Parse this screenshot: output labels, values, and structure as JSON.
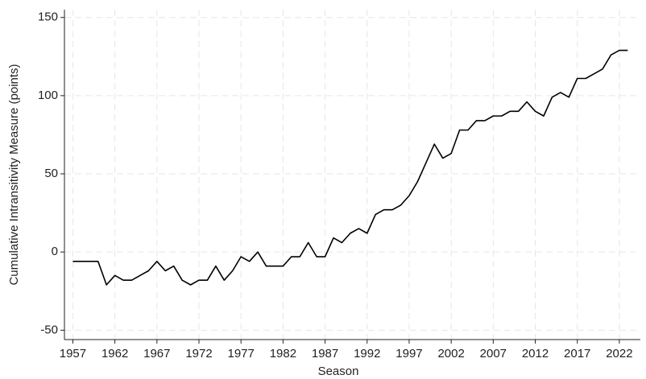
{
  "chart_data": {
    "type": "line",
    "xlabel": "Season",
    "ylabel": "Cumulative Intransitivity Measure (points)",
    "x": [
      1957,
      1958,
      1959,
      1960,
      1961,
      1962,
      1963,
      1964,
      1965,
      1966,
      1967,
      1968,
      1969,
      1970,
      1971,
      1972,
      1973,
      1974,
      1975,
      1976,
      1977,
      1978,
      1979,
      1980,
      1981,
      1982,
      1983,
      1984,
      1985,
      1986,
      1987,
      1988,
      1989,
      1990,
      1991,
      1992,
      1993,
      1994,
      1995,
      1996,
      1997,
      1998,
      1999,
      2000,
      2001,
      2002,
      2003,
      2004,
      2005,
      2006,
      2007,
      2008,
      2009,
      2010,
      2011,
      2012,
      2013,
      2014,
      2015,
      2016,
      2017,
      2018,
      2019,
      2020,
      2021,
      2022,
      2023
    ],
    "series": [
      {
        "color": "#000000",
        "values": [
          -6,
          -6,
          -6,
          -6,
          -21,
          -15,
          -18,
          -18,
          -15,
          -12,
          -6,
          -12,
          -9,
          -18,
          -21,
          -18,
          -18,
          -9,
          -18,
          -12,
          -3,
          -6,
          0,
          -9,
          -9,
          -9,
          -3,
          -3,
          6,
          -3,
          -3,
          9,
          6,
          12,
          15,
          12,
          24,
          27,
          27,
          30,
          36,
          45,
          57,
          69,
          60,
          63,
          78,
          78,
          84,
          84,
          87,
          87,
          90,
          90,
          96,
          90,
          87,
          99,
          102,
          99,
          111,
          111,
          114,
          117,
          126,
          129,
          129
        ]
      }
    ],
    "xlim": [
      1956,
      2024.5
    ],
    "ylim": [
      -56,
      155
    ],
    "xticks": [
      1957,
      1962,
      1967,
      1972,
      1977,
      1982,
      1987,
      1992,
      1997,
      2002,
      2007,
      2012,
      2017,
      2022
    ],
    "yticks": [
      -50,
      0,
      50,
      100,
      150
    ],
    "grid": true
  }
}
